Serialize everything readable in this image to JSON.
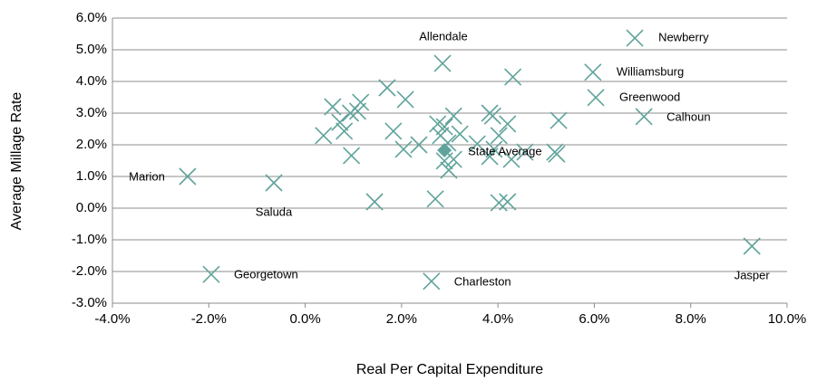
{
  "chart_data": {
    "type": "scatter",
    "x_label": "Real Per Capital Expenditure",
    "y_label": "Average Millage Rate",
    "xlim": [
      -4,
      10
    ],
    "ylim": [
      -3,
      6
    ],
    "xticks": [
      {
        "value": -4,
        "label": "-4.0%"
      },
      {
        "value": -2,
        "label": "-2.0%"
      },
      {
        "value": 0,
        "label": "0.0%"
      },
      {
        "value": 2,
        "label": "2.0%"
      },
      {
        "value": 4,
        "label": "4.0%"
      },
      {
        "value": 6,
        "label": "6.0%"
      },
      {
        "value": 8,
        "label": "8.0%"
      },
      {
        "value": 10,
        "label": "10.0%"
      }
    ],
    "yticks": [
      {
        "value": -3,
        "label": "-3.0%"
      },
      {
        "value": -2,
        "label": "-2.0%"
      },
      {
        "value": -1,
        "label": "-1.0%"
      },
      {
        "value": 0,
        "label": "0.0%"
      },
      {
        "value": 1,
        "label": "1.0%"
      },
      {
        "value": 2,
        "label": "2.0%"
      },
      {
        "value": 3,
        "label": "3.0%"
      },
      {
        "value": 4,
        "label": "4.0%"
      },
      {
        "value": 5,
        "label": "5.0%"
      },
      {
        "value": 6,
        "label": "6.0%"
      }
    ],
    "grid": true,
    "series": [
      {
        "marker": "x",
        "color": "#5fa39b",
        "x": [
          6.84,
          5.97,
          6.03,
          7.03,
          2.85,
          -2.44,
          -0.65,
          -1.95,
          2.62,
          9.27,
          0.57,
          0.38,
          0.72,
          0.81,
          0.94,
          1.09,
          1.15,
          1.7,
          2.08,
          1.83,
          2.04,
          2.36,
          0.96,
          1.44,
          2.7,
          2.75,
          2.89,
          2.81,
          2.96,
          2.89,
          2.98,
          3.08,
          3.21,
          3.08,
          3.57,
          3.83,
          3.92,
          4.02,
          3.83,
          3.89,
          4.2,
          4.31,
          4.28,
          4.02,
          4.2,
          4.56,
          5.18,
          5.26,
          5.22
        ],
        "values": [
          5.37,
          4.29,
          3.49,
          2.89,
          4.57,
          1.0,
          0.8,
          -2.09,
          -2.31,
          -1.2,
          3.2,
          2.29,
          2.71,
          2.43,
          3.0,
          3.06,
          3.34,
          3.8,
          3.43,
          2.43,
          1.86,
          2.0,
          1.66,
          0.2,
          0.29,
          2.66,
          2.57,
          2.29,
          2.06,
          1.49,
          1.2,
          1.54,
          2.34,
          2.91,
          2.03,
          1.63,
          1.86,
          2.29,
          3.0,
          2.91,
          2.66,
          4.14,
          1.54,
          0.17,
          0.2,
          1.77,
          1.77,
          2.77,
          1.71
        ],
        "labels": [
          "Newberry",
          "Williamsburg",
          "Greenwood",
          "Calhoun",
          "Allendale",
          "Marion",
          "Saluda",
          "Georgetown",
          "Charleston",
          "Jasper",
          null,
          null,
          null,
          null,
          null,
          null,
          null,
          null,
          null,
          null,
          null,
          null,
          null,
          null,
          null,
          null,
          null,
          null,
          null,
          null,
          null,
          null,
          null,
          null,
          null,
          null,
          null,
          null,
          null,
          null,
          null,
          null,
          null,
          null,
          null,
          null,
          null,
          null,
          null
        ]
      },
      {
        "marker": "diamond",
        "color": "#5fa39b",
        "x": [
          2.89
        ],
        "values": [
          1.83
        ],
        "labels": [
          "State Average"
        ]
      }
    ]
  }
}
